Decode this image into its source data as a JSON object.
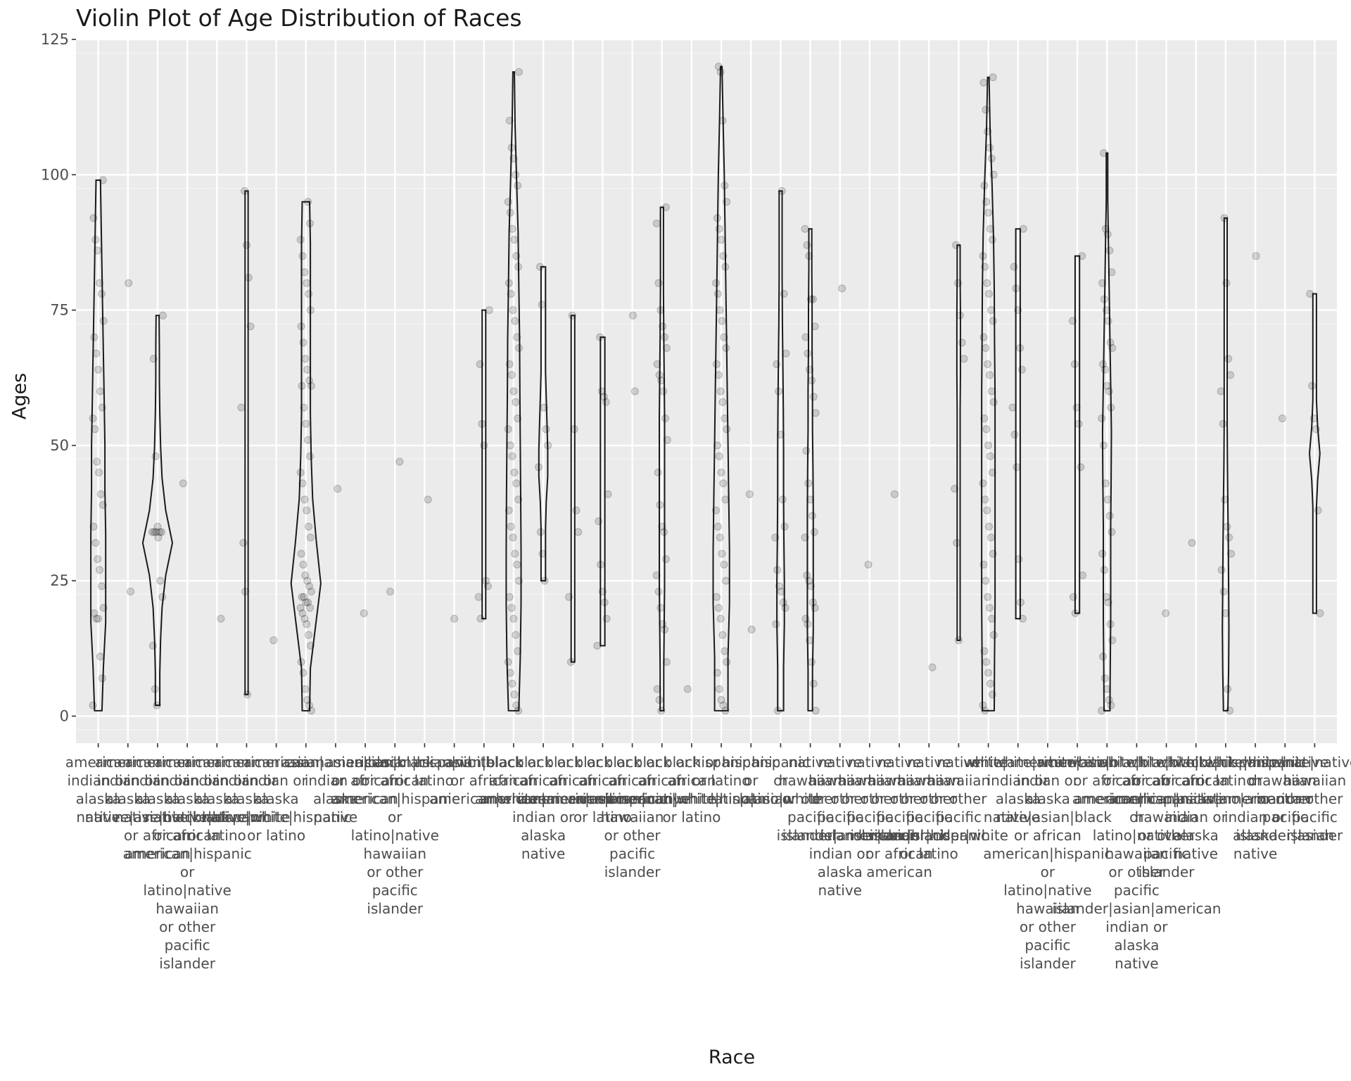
{
  "chart_data": {
    "type": "violin",
    "title": "Violin Plot of Age Distribution of Races",
    "xlabel": "Race",
    "ylabel": "Ages",
    "ylim": [
      -5,
      125
    ],
    "yticks": [
      0,
      25,
      50,
      75,
      100,
      125
    ],
    "grid": true,
    "legend": "none",
    "categories": [
      {
        "label": "american indian or alaska native",
        "min": 1,
        "max": 99,
        "profile": [
          0.25,
          0.35,
          0.5,
          0.5,
          0.5,
          0.45,
          0.45,
          0.4,
          0.35,
          0.3,
          0.25,
          0.2,
          0.15
        ],
        "points": [
          2,
          7,
          11,
          18,
          18,
          19,
          20,
          24,
          27,
          29,
          32,
          35,
          39,
          41,
          45,
          47,
          53,
          55,
          57,
          60,
          64,
          67,
          70,
          73,
          78,
          80,
          86,
          88,
          92,
          99
        ]
      },
      {
        "label": "american indian or alaska native|asian",
        "min": 23,
        "max": 80,
        "points": [
          23,
          80
        ]
      },
      {
        "label": "american indian or alaska native|black or african american",
        "min": 2,
        "max": 74,
        "profile": [
          0.15,
          0.15,
          0.2,
          0.3,
          0.55,
          1.0,
          0.55,
          0.3,
          0.2,
          0.15,
          0.12,
          0.12,
          0.1
        ],
        "points": [
          2,
          5,
          13,
          22,
          25,
          33,
          34,
          34,
          34,
          34,
          34,
          35,
          48,
          66,
          74
        ]
      },
      {
        "label": "american indian or alaska native|black or african american|hispanic or latino|native hawaiian or other pacific islander",
        "min": 43,
        "max": 43,
        "points": [
          43
        ]
      },
      {
        "label": "american indian or alaska native|hispanic or latino",
        "min": 18,
        "max": 18,
        "points": [
          18
        ]
      },
      {
        "label": "american indian or alaska native|white",
        "min": 4,
        "max": 97,
        "profile": [
          0.1,
          0.1,
          0.1,
          0.1,
          0.1,
          0.1,
          0.1,
          0.1,
          0.1,
          0.1,
          0.1,
          0.1,
          0.1
        ],
        "points": [
          4,
          23,
          32,
          57,
          72,
          81,
          87,
          97
        ]
      },
      {
        "label": "american indian or alaska native|white|hispanic or latino",
        "min": 14,
        "max": 14,
        "points": [
          14
        ]
      },
      {
        "label": "asian",
        "min": 1,
        "max": 95,
        "profile": [
          0.25,
          0.3,
          0.65,
          1.0,
          0.7,
          0.45,
          0.35,
          0.3,
          0.3,
          0.3,
          0.3,
          0.3,
          0.25
        ],
        "points": [
          1,
          2,
          3,
          5,
          8,
          10,
          13,
          15,
          17,
          18,
          19,
          20,
          20,
          21,
          21,
          22,
          22,
          23,
          24,
          25,
          26,
          28,
          30,
          33,
          35,
          38,
          40,
          43,
          45,
          48,
          51,
          54,
          57,
          61,
          61,
          62,
          64,
          66,
          69,
          72,
          75,
          78,
          80,
          82,
          85,
          88,
          91,
          95
        ]
      },
      {
        "label": "asian|american indian or alaska native",
        "min": 42,
        "max": 42,
        "points": [
          42
        ]
      },
      {
        "label": "asian|black or african american",
        "min": 19,
        "max": 19,
        "points": [
          19
        ]
      },
      {
        "label": "asian|black or african american|hispanic or latino|native hawaiian or other pacific islander",
        "min": 23,
        "max": 47,
        "points": [
          23,
          47
        ]
      },
      {
        "label": "asian|hispanic or latino",
        "min": 40,
        "max": 40,
        "points": [
          40
        ]
      },
      {
        "label": "asian|white",
        "min": 18,
        "max": 18,
        "points": [
          18
        ]
      },
      {
        "label": "asian|black or african american|white",
        "min": 18,
        "max": 75,
        "profile": [
          0.12,
          0.12,
          0.12,
          0.12,
          0.12,
          0.12,
          0.12,
          0.12,
          0.12,
          0.12,
          0.12,
          0.12,
          0.12
        ],
        "points": [
          18,
          22,
          24,
          25,
          50,
          54,
          65,
          75
        ]
      },
      {
        "label": "black or african american",
        "min": 1,
        "max": 119,
        "profile": [
          0.35,
          0.45,
          0.5,
          0.5,
          0.48,
          0.45,
          0.42,
          0.4,
          0.35,
          0.3,
          0.2,
          0.1,
          0.05
        ],
        "points": [
          1,
          2,
          4,
          6,
          8,
          10,
          12,
          15,
          18,
          20,
          22,
          25,
          28,
          30,
          33,
          35,
          38,
          40,
          43,
          45,
          48,
          50,
          53,
          55,
          58,
          60,
          63,
          65,
          68,
          70,
          73,
          75,
          78,
          80,
          83,
          85,
          88,
          90,
          93,
          95,
          98,
          100,
          103,
          105,
          110,
          119
        ]
      },
      {
        "label": "black or african american|american indian or alaska native",
        "min": 25,
        "max": 83,
        "profile": [
          0.15,
          0.15,
          0.15,
          0.2,
          0.3,
          0.3,
          0.25,
          0.2,
          0.15,
          0.15,
          0.15,
          0.15,
          0.15
        ],
        "points": [
          25,
          30,
          34,
          46,
          50,
          53,
          57,
          76,
          83
        ]
      },
      {
        "label": "black or african american|asian",
        "min": 10,
        "max": 74,
        "profile": [
          0.12,
          0.12,
          0.12,
          0.12,
          0.12,
          0.12,
          0.12,
          0.12,
          0.12,
          0.12,
          0.12,
          0.12,
          0.12
        ],
        "points": [
          10,
          22,
          34,
          38,
          53,
          74
        ]
      },
      {
        "label": "black or african american|hispanic or latino",
        "min": 13,
        "max": 70,
        "profile": [
          0.15,
          0.15,
          0.15,
          0.15,
          0.15,
          0.15,
          0.15,
          0.15,
          0.15,
          0.15,
          0.15,
          0.15,
          0.15
        ],
        "points": [
          13,
          18,
          21,
          23,
          28,
          36,
          41,
          58,
          59,
          60,
          70
        ]
      },
      {
        "label": "black or african american|native hawaiian or other pacific islander",
        "min": 60,
        "max": 74,
        "points": [
          60,
          74
        ]
      },
      {
        "label": "black or african american|white",
        "min": 1,
        "max": 94,
        "profile": [
          0.12,
          0.12,
          0.15,
          0.18,
          0.18,
          0.18,
          0.18,
          0.18,
          0.15,
          0.12,
          0.1,
          0.1,
          0.1
        ],
        "points": [
          1,
          3,
          5,
          10,
          16,
          17,
          20,
          23,
          26,
          29,
          34,
          35,
          39,
          45,
          51,
          55,
          60,
          62,
          63,
          65,
          68,
          70,
          72,
          75,
          80,
          91,
          94
        ]
      },
      {
        "label": "black or african american|white|hispanic or latino",
        "min": 5,
        "max": 5,
        "points": [
          5
        ]
      },
      {
        "label": "hispanic or latino",
        "min": 1,
        "max": 120,
        "profile": [
          0.45,
          0.45,
          0.55,
          0.55,
          0.5,
          0.45,
          0.4,
          0.35,
          0.3,
          0.25,
          0.2,
          0.12,
          0.05
        ],
        "points": [
          1,
          2,
          3,
          5,
          8,
          10,
          12,
          15,
          18,
          20,
          22,
          25,
          28,
          30,
          33,
          35,
          38,
          40,
          43,
          45,
          48,
          50,
          53,
          55,
          58,
          60,
          63,
          65,
          68,
          70,
          73,
          75,
          78,
          80,
          83,
          85,
          88,
          90,
          92,
          95,
          98,
          110,
          119,
          120
        ]
      },
      {
        "label": "hispanic or latino|asian",
        "min": 16,
        "max": 41,
        "points": [
          16,
          41
        ]
      },
      {
        "label": "hispanic or latino|white",
        "min": 1,
        "max": 97,
        "profile": [
          0.2,
          0.2,
          0.25,
          0.25,
          0.22,
          0.2,
          0.2,
          0.18,
          0.15,
          0.12,
          0.1,
          0.1,
          0.1
        ],
        "points": [
          1,
          17,
          20,
          21,
          23,
          24,
          27,
          33,
          35,
          40,
          52,
          60,
          65,
          67,
          78,
          97
        ]
      },
      {
        "label": "native hawaiian or other pacific islander",
        "min": 1,
        "max": 90,
        "profile": [
          0.15,
          0.15,
          0.2,
          0.2,
          0.2,
          0.2,
          0.18,
          0.15,
          0.15,
          0.12,
          0.12,
          0.1,
          0.1
        ],
        "points": [
          1,
          6,
          10,
          14,
          17,
          18,
          20,
          21,
          24,
          25,
          26,
          33,
          34,
          37,
          40,
          43,
          49,
          56,
          59,
          62,
          64,
          67,
          70,
          72,
          77,
          77,
          85,
          87,
          90
        ]
      },
      {
        "label": "native hawaiian or other pacific islander|american indian or alaska native",
        "min": 79,
        "max": 79,
        "points": [
          79
        ]
      },
      {
        "label": "native hawaiian or other pacific islander|asian",
        "min": 28,
        "max": 28,
        "points": [
          28
        ]
      },
      {
        "label": "native hawaiian or other pacific islander|black or african american",
        "min": 41,
        "max": 41,
        "points": [
          41
        ]
      },
      {
        "label": "native hawaiian or other pacific islander|hispanic or latino",
        "min": 9,
        "max": 9,
        "points": [
          9
        ]
      },
      {
        "label": "native hawaiian or other pacific islander|white",
        "min": 14,
        "max": 87,
        "profile": [
          0.1,
          0.1,
          0.1,
          0.1,
          0.1,
          0.1,
          0.1,
          0.1,
          0.12,
          0.12,
          0.12,
          0.1,
          0.1
        ],
        "points": [
          14,
          32,
          42,
          66,
          69,
          74,
          80,
          87
        ]
      },
      {
        "label": "white",
        "min": 1,
        "max": 118,
        "profile": [
          0.4,
          0.42,
          0.45,
          0.45,
          0.45,
          0.45,
          0.45,
          0.42,
          0.4,
          0.35,
          0.25,
          0.12,
          0.05
        ],
        "points": [
          1,
          2,
          4,
          6,
          8,
          10,
          12,
          15,
          18,
          20,
          22,
          25,
          28,
          30,
          33,
          35,
          38,
          40,
          43,
          45,
          48,
          50,
          53,
          55,
          58,
          60,
          63,
          65,
          68,
          70,
          73,
          75,
          78,
          80,
          83,
          85,
          88,
          90,
          93,
          95,
          98,
          100,
          103,
          105,
          108,
          112,
          117,
          118
        ]
      },
      {
        "label": "white|american indian or alaska native",
        "min": 18,
        "max": 90,
        "profile": [
          0.15,
          0.15,
          0.15,
          0.15,
          0.15,
          0.15,
          0.15,
          0.15,
          0.15,
          0.15,
          0.15,
          0.15,
          0.15
        ],
        "points": [
          18,
          21,
          29,
          46,
          52,
          57,
          64,
          68,
          75,
          79,
          83,
          90
        ]
      },
      {
        "label": "white|american indian or alaska native|asian|black or african american|hispanic or latino|native hawaiian or other pacific islander",
        "min": 0,
        "max": 0,
        "points": []
      },
      {
        "label": "white|asian",
        "min": 19,
        "max": 85,
        "profile": [
          0.15,
          0.15,
          0.15,
          0.15,
          0.15,
          0.15,
          0.15,
          0.15,
          0.15,
          0.15,
          0.15,
          0.15,
          0.15
        ],
        "points": [
          19,
          22,
          26,
          46,
          54,
          57,
          65,
          73,
          85
        ]
      },
      {
        "label": "white|black or african american",
        "min": 1,
        "max": 104,
        "profile": [
          0.2,
          0.22,
          0.25,
          0.25,
          0.25,
          0.28,
          0.3,
          0.25,
          0.2,
          0.15,
          0.1,
          0.05,
          0.05
        ],
        "points": [
          1,
          2,
          3,
          5,
          7,
          11,
          14,
          17,
          21,
          22,
          27,
          30,
          34,
          37,
          40,
          43,
          50,
          55,
          57,
          60,
          61,
          64,
          65,
          68,
          69,
          73,
          75,
          77,
          80,
          82,
          86,
          89,
          90,
          104
        ]
      },
      {
        "label": "white|black or african american|hispanic or latino|native hawaiian or other pacific islander|asian|american indian or alaska native",
        "min": 0,
        "max": 0,
        "points": []
      },
      {
        "label": "white|black or african american|native hawaiian or other pacific islander",
        "min": 19,
        "max": 19,
        "points": [
          19
        ]
      },
      {
        "label": "white|black or african american|asian|american indian or alaska native",
        "min": 32,
        "max": 32,
        "points": [
          32
        ]
      },
      {
        "label": "white|hispanic or latino",
        "min": 1,
        "max": 92,
        "profile": [
          0.15,
          0.2,
          0.22,
          0.2,
          0.18,
          0.15,
          0.12,
          0.1,
          0.1,
          0.1,
          0.1,
          0.1,
          0.1
        ],
        "points": [
          1,
          5,
          19,
          23,
          27,
          30,
          33,
          35,
          40,
          54,
          60,
          63,
          66,
          80,
          92
        ]
      },
      {
        "label": "white|hispanic or latino|american indian or alaska native",
        "min": 85,
        "max": 85,
        "points": [
          85
        ]
      },
      {
        "label": "white|native hawaiian or other pacific islander|asian",
        "min": 55,
        "max": 55,
        "points": [
          55
        ]
      },
      {
        "label": "white|native hawaiian or other pacific islander",
        "min": 19,
        "max": 78,
        "profile": [
          0.12,
          0.12,
          0.12,
          0.12,
          0.12,
          0.2,
          0.35,
          0.2,
          0.12,
          0.12,
          0.12,
          0.12,
          0.12
        ],
        "points": [
          19,
          38,
          53,
          55,
          61,
          78
        ]
      }
    ]
  }
}
